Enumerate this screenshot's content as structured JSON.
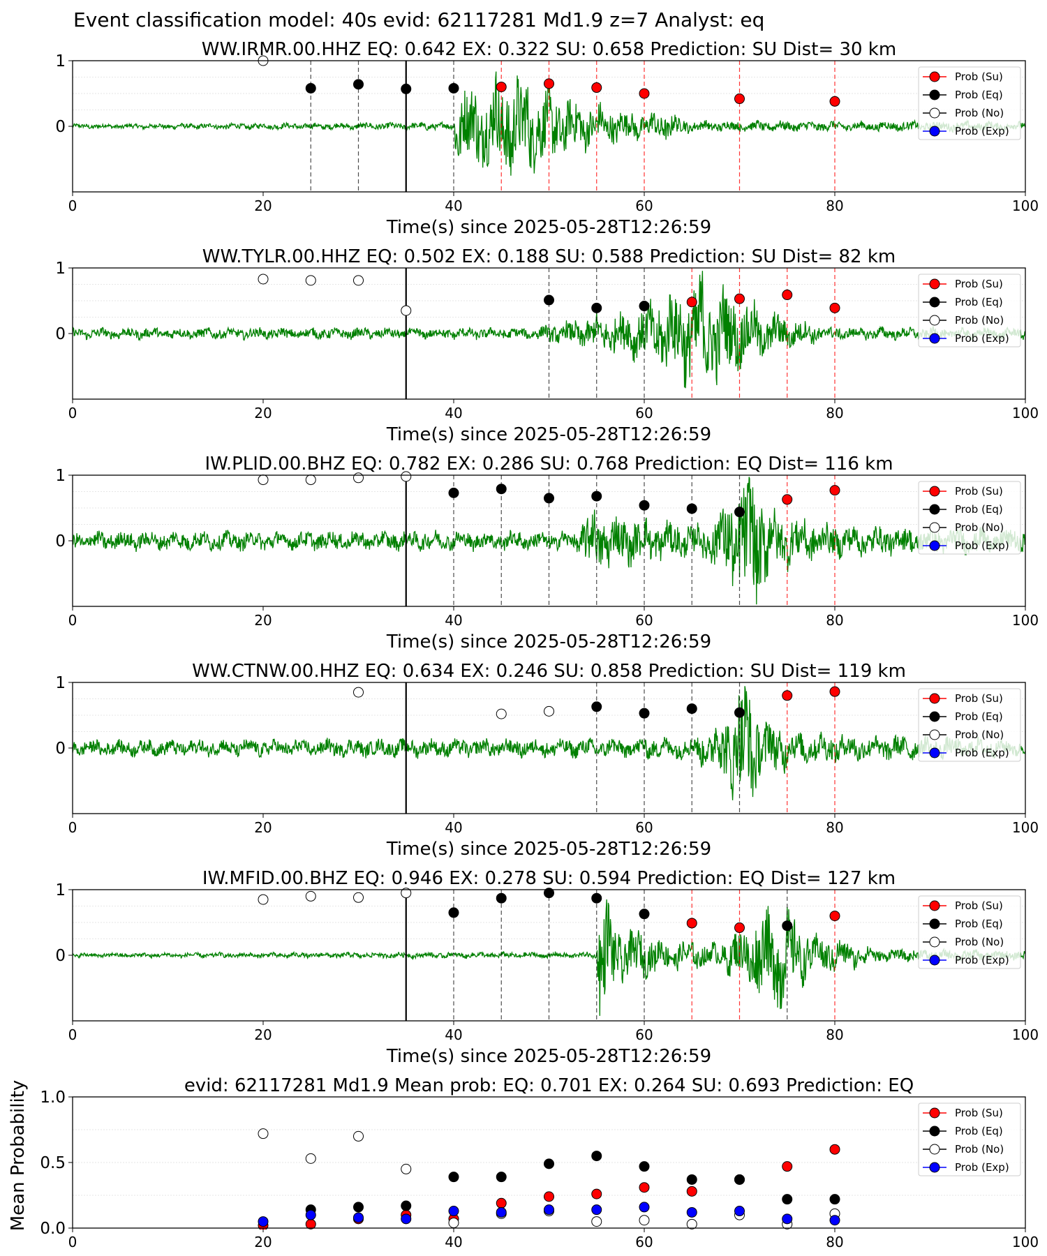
{
  "suptitle": "Event classification model: 40s evid: 62117281 Md1.9 z=7 Analyst: eq",
  "time_label": "Time(s) since 2025-05-28T12:26:59",
  "legend": {
    "su": "Prob (Su)",
    "eq": "Prob (Eq)",
    "no": "Prob (No)",
    "exp": "Prob (Exp)"
  },
  "colors": {
    "su": "#ff0000",
    "eq": "#000000",
    "no": "#ffffff",
    "exp": "#0000ff",
    "waveform": "#008000",
    "su_line": "#ff0000",
    "eq_line": "#000000"
  },
  "chart_data": [
    {
      "type": "line",
      "title": "WW.IRMR.00.HHZ   EQ: 0.642  EX: 0.322  SU: 0.658   Prediction: SU    Dist= 30 km",
      "xlabel": "Time(s) since 2025-05-28T12:26:59",
      "xlim": [
        0,
        100
      ],
      "ylim": [
        -1,
        1
      ],
      "xticks": [
        "0",
        "20",
        "40",
        "60",
        "80",
        "100"
      ],
      "yticks": [
        "1",
        "0"
      ],
      "pick_time": 35,
      "waveform_profile": [
        [
          0,
          0.03
        ],
        [
          40,
          0.05
        ],
        [
          40.2,
          0.45
        ],
        [
          46,
          0.7
        ],
        [
          52,
          0.35
        ],
        [
          60,
          0.15
        ],
        [
          62,
          0.2
        ],
        [
          65,
          0.07
        ],
        [
          100,
          0.06
        ]
      ],
      "dashed_lines": [
        {
          "x": 25,
          "class": "eq"
        },
        {
          "x": 30,
          "class": "eq"
        },
        {
          "x": 40,
          "class": "eq"
        },
        {
          "x": 45,
          "class": "su"
        },
        {
          "x": 50,
          "class": "su"
        },
        {
          "x": 55,
          "class": "su"
        },
        {
          "x": 60,
          "class": "su"
        },
        {
          "x": 70,
          "class": "su"
        },
        {
          "x": 80,
          "class": "su"
        }
      ],
      "points": [
        {
          "x": 20,
          "y": 1.0,
          "class": "no"
        },
        {
          "x": 25,
          "y": 0.58,
          "class": "eq"
        },
        {
          "x": 30,
          "y": 0.64,
          "class": "eq"
        },
        {
          "x": 35,
          "y": 0.57,
          "class": "eq"
        },
        {
          "x": 40,
          "y": 0.58,
          "class": "eq"
        },
        {
          "x": 45,
          "y": 0.6,
          "class": "su"
        },
        {
          "x": 50,
          "y": 0.65,
          "class": "su"
        },
        {
          "x": 55,
          "y": 0.59,
          "class": "su"
        },
        {
          "x": 60,
          "y": 0.5,
          "class": "su"
        },
        {
          "x": 70,
          "y": 0.42,
          "class": "su"
        },
        {
          "x": 80,
          "y": 0.38,
          "class": "su"
        }
      ]
    },
    {
      "type": "line",
      "title": "WW.TYLR.00.HHZ   EQ: 0.502  EX: 0.188  SU: 0.588   Prediction: SU    Dist= 82 km",
      "xlabel": "Time(s) since 2025-05-28T12:26:59",
      "xlim": [
        0,
        100
      ],
      "ylim": [
        -1,
        1
      ],
      "xticks": [
        "0",
        "20",
        "40",
        "60",
        "80",
        "100"
      ],
      "yticks": [
        "1",
        "0"
      ],
      "pick_time": 35,
      "waveform_profile": [
        [
          0,
          0.07
        ],
        [
          48,
          0.07
        ],
        [
          55,
          0.22
        ],
        [
          60,
          0.35
        ],
        [
          66,
          0.75
        ],
        [
          70,
          0.45
        ],
        [
          75,
          0.2
        ],
        [
          80,
          0.08
        ],
        [
          100,
          0.07
        ]
      ],
      "dashed_lines": [
        {
          "x": 50,
          "class": "eq"
        },
        {
          "x": 55,
          "class": "eq"
        },
        {
          "x": 60,
          "class": "eq"
        },
        {
          "x": 65,
          "class": "su"
        },
        {
          "x": 70,
          "class": "su"
        },
        {
          "x": 75,
          "class": "su"
        },
        {
          "x": 80,
          "class": "su"
        }
      ],
      "points": [
        {
          "x": 20,
          "y": 0.83,
          "class": "no"
        },
        {
          "x": 25,
          "y": 0.81,
          "class": "no"
        },
        {
          "x": 30,
          "y": 0.81,
          "class": "no"
        },
        {
          "x": 35,
          "y": 0.35,
          "class": "no"
        },
        {
          "x": 50,
          "y": 0.51,
          "class": "eq"
        },
        {
          "x": 55,
          "y": 0.39,
          "class": "eq"
        },
        {
          "x": 60,
          "y": 0.42,
          "class": "eq"
        },
        {
          "x": 65,
          "y": 0.48,
          "class": "su"
        },
        {
          "x": 70,
          "y": 0.53,
          "class": "su"
        },
        {
          "x": 75,
          "y": 0.59,
          "class": "su"
        },
        {
          "x": 80,
          "y": 0.39,
          "class": "su"
        }
      ]
    },
    {
      "type": "line",
      "title": "IW.PLID.00.BHZ   EQ: 0.782  EX: 0.286  SU: 0.768   Prediction: EQ    Dist= 116 km",
      "xlabel": "Time(s) since 2025-05-28T12:26:59",
      "xlim": [
        0,
        100
      ],
      "ylim": [
        -1,
        1
      ],
      "xticks": [
        "0",
        "20",
        "40",
        "60",
        "80",
        "100"
      ],
      "yticks": [
        "1",
        "0"
      ],
      "pick_time": 35,
      "waveform_profile": [
        [
          0,
          0.12
        ],
        [
          53,
          0.12
        ],
        [
          54,
          0.4
        ],
        [
          58,
          0.3
        ],
        [
          66,
          0.2
        ],
        [
          68,
          0.45
        ],
        [
          71,
          0.9
        ],
        [
          74,
          0.35
        ],
        [
          80,
          0.2
        ],
        [
          100,
          0.15
        ]
      ],
      "dashed_lines": [
        {
          "x": 40,
          "class": "eq"
        },
        {
          "x": 45,
          "class": "eq"
        },
        {
          "x": 50,
          "class": "eq"
        },
        {
          "x": 55,
          "class": "eq"
        },
        {
          "x": 60,
          "class": "eq"
        },
        {
          "x": 65,
          "class": "eq"
        },
        {
          "x": 70,
          "class": "eq"
        },
        {
          "x": 75,
          "class": "su"
        },
        {
          "x": 80,
          "class": "su"
        }
      ],
      "points": [
        {
          "x": 20,
          "y": 0.93,
          "class": "no"
        },
        {
          "x": 25,
          "y": 0.93,
          "class": "no"
        },
        {
          "x": 30,
          "y": 0.96,
          "class": "no"
        },
        {
          "x": 35,
          "y": 0.98,
          "class": "no"
        },
        {
          "x": 40,
          "y": 0.73,
          "class": "eq"
        },
        {
          "x": 45,
          "y": 0.79,
          "class": "eq"
        },
        {
          "x": 50,
          "y": 0.65,
          "class": "eq"
        },
        {
          "x": 55,
          "y": 0.68,
          "class": "eq"
        },
        {
          "x": 60,
          "y": 0.54,
          "class": "eq"
        },
        {
          "x": 65,
          "y": 0.49,
          "class": "eq"
        },
        {
          "x": 70,
          "y": 0.44,
          "class": "eq"
        },
        {
          "x": 75,
          "y": 0.63,
          "class": "su"
        },
        {
          "x": 80,
          "y": 0.77,
          "class": "su"
        }
      ]
    },
    {
      "type": "line",
      "title": "WW.CTNW.00.HHZ   EQ: 0.634  EX: 0.246  SU: 0.858   Prediction: SU    Dist= 119 km",
      "xlabel": "Time(s) since 2025-05-28T12:26:59",
      "xlim": [
        0,
        100
      ],
      "ylim": [
        -1,
        1
      ],
      "xticks": [
        "0",
        "20",
        "40",
        "60",
        "80",
        "100"
      ],
      "yticks": [
        "1",
        "0"
      ],
      "pick_time": 35,
      "waveform_profile": [
        [
          0,
          0.1
        ],
        [
          55,
          0.12
        ],
        [
          65,
          0.15
        ],
        [
          67,
          0.3
        ],
        [
          69.5,
          0.6
        ],
        [
          70.5,
          1.0
        ],
        [
          72,
          0.45
        ],
        [
          76,
          0.2
        ],
        [
          100,
          0.1
        ]
      ],
      "dashed_lines": [
        {
          "x": 55,
          "class": "eq"
        },
        {
          "x": 60,
          "class": "eq"
        },
        {
          "x": 65,
          "class": "eq"
        },
        {
          "x": 70,
          "class": "eq"
        },
        {
          "x": 75,
          "class": "su"
        },
        {
          "x": 80,
          "class": "su"
        }
      ],
      "points": [
        {
          "x": 30,
          "y": 0.85,
          "class": "no"
        },
        {
          "x": 45,
          "y": 0.52,
          "class": "no"
        },
        {
          "x": 50,
          "y": 0.56,
          "class": "no"
        },
        {
          "x": 55,
          "y": 0.63,
          "class": "eq"
        },
        {
          "x": 60,
          "y": 0.53,
          "class": "eq"
        },
        {
          "x": 65,
          "y": 0.6,
          "class": "eq"
        },
        {
          "x": 70,
          "y": 0.54,
          "class": "eq"
        },
        {
          "x": 75,
          "y": 0.8,
          "class": "su"
        },
        {
          "x": 80,
          "y": 0.86,
          "class": "su"
        }
      ]
    },
    {
      "type": "line",
      "title": "IW.MFID.00.BHZ   EQ: 0.946  EX: 0.278  SU: 0.594   Prediction: EQ    Dist= 127 km",
      "xlabel": "Time(s) since 2025-05-28T12:26:59",
      "xlim": [
        0,
        100
      ],
      "ylim": [
        -1,
        1
      ],
      "xticks": [
        "0",
        "20",
        "40",
        "60",
        "80",
        "100"
      ],
      "yticks": [
        "1",
        "0"
      ],
      "pick_time": 35,
      "waveform_profile": [
        [
          0,
          0.03
        ],
        [
          55,
          0.04
        ],
        [
          55.3,
          0.9
        ],
        [
          57,
          0.4
        ],
        [
          62,
          0.2
        ],
        [
          68,
          0.15
        ],
        [
          72,
          0.55
        ],
        [
          74,
          0.75
        ],
        [
          77,
          0.3
        ],
        [
          85,
          0.08
        ],
        [
          100,
          0.06
        ]
      ],
      "dashed_lines": [
        {
          "x": 40,
          "class": "eq"
        },
        {
          "x": 45,
          "class": "eq"
        },
        {
          "x": 50,
          "class": "eq"
        },
        {
          "x": 55,
          "class": "eq"
        },
        {
          "x": 60,
          "class": "eq"
        },
        {
          "x": 65,
          "class": "su"
        },
        {
          "x": 70,
          "class": "su"
        },
        {
          "x": 75,
          "class": "eq"
        },
        {
          "x": 80,
          "class": "su"
        }
      ],
      "points": [
        {
          "x": 20,
          "y": 0.85,
          "class": "no"
        },
        {
          "x": 25,
          "y": 0.9,
          "class": "no"
        },
        {
          "x": 30,
          "y": 0.88,
          "class": "no"
        },
        {
          "x": 35,
          "y": 0.95,
          "class": "no"
        },
        {
          "x": 40,
          "y": 0.65,
          "class": "eq"
        },
        {
          "x": 45,
          "y": 0.87,
          "class": "eq"
        },
        {
          "x": 50,
          "y": 0.95,
          "class": "eq"
        },
        {
          "x": 55,
          "y": 0.87,
          "class": "eq"
        },
        {
          "x": 60,
          "y": 0.63,
          "class": "eq"
        },
        {
          "x": 65,
          "y": 0.49,
          "class": "su"
        },
        {
          "x": 70,
          "y": 0.42,
          "class": "su"
        },
        {
          "x": 75,
          "y": 0.45,
          "class": "eq"
        },
        {
          "x": 80,
          "y": 0.6,
          "class": "su"
        }
      ]
    },
    {
      "type": "scatter",
      "title": "evid: 62117281  Md1.9   Mean prob:   EQ: 0.701  EX: 0.264  SU: 0.693   Prediction: EQ",
      "ylabel": "Mean Probability",
      "xlim": [
        0,
        100
      ],
      "ylim": [
        0,
        1
      ],
      "xticks": [
        "0",
        "20",
        "40",
        "60",
        "80",
        "100"
      ],
      "yticks": [
        "1.0",
        "0.5",
        "0.0"
      ],
      "series": [
        {
          "name": "Prob (Su)",
          "class": "su",
          "x": [
            20,
            25,
            30,
            35,
            40,
            45,
            50,
            55,
            60,
            65,
            70,
            75,
            80
          ],
          "y": [
            0.02,
            0.03,
            0.07,
            0.1,
            0.07,
            0.19,
            0.24,
            0.26,
            0.31,
            0.28,
            0.37,
            0.47,
            0.6
          ]
        },
        {
          "name": "Prob (Eq)",
          "class": "eq",
          "x": [
            25,
            30,
            35,
            40,
            45,
            50,
            55,
            60,
            65,
            70,
            75,
            80
          ],
          "y": [
            0.14,
            0.16,
            0.17,
            0.39,
            0.39,
            0.49,
            0.55,
            0.47,
            0.37,
            0.37,
            0.22,
            0.22
          ]
        },
        {
          "name": "Prob (No)",
          "class": "no",
          "x": [
            20,
            25,
            30,
            35,
            40,
            45,
            50,
            55,
            60,
            65,
            70,
            75,
            80
          ],
          "y": [
            0.72,
            0.53,
            0.7,
            0.45,
            0.04,
            0.11,
            0.13,
            0.05,
            0.06,
            0.03,
            0.1,
            0.03,
            0.11
          ]
        },
        {
          "name": "Prob (Exp)",
          "class": "exp",
          "x": [
            20,
            25,
            30,
            35,
            40,
            45,
            50,
            55,
            60,
            65,
            70,
            75,
            80
          ],
          "y": [
            0.05,
            0.1,
            0.08,
            0.07,
            0.13,
            0.12,
            0.14,
            0.14,
            0.16,
            0.12,
            0.13,
            0.07,
            0.06
          ]
        }
      ]
    }
  ]
}
